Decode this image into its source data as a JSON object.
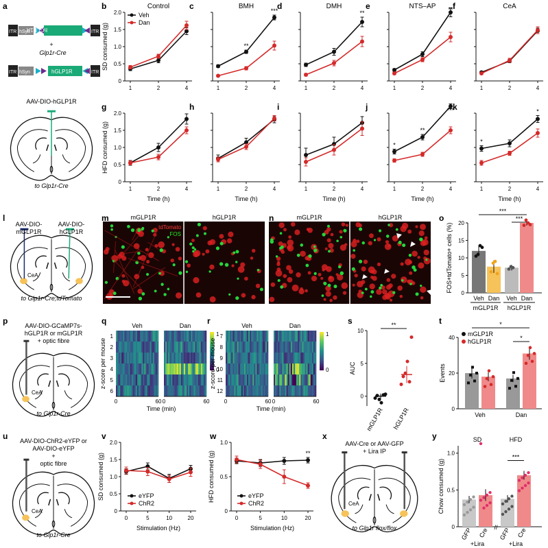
{
  "colors": {
    "veh": "#111111",
    "dan": "#d42a2a",
    "gfp_bar": "#c8c8c8",
    "dan_bar": "#f08a8a",
    "m_dan_bar": "#f6c35a",
    "teal": "#1aaa77",
    "navy": "#1a2a6a"
  },
  "panel_letters": [
    "a",
    "b",
    "c",
    "d",
    "e",
    "f",
    "g",
    "h",
    "i",
    "j",
    "k",
    "l",
    "m",
    "n",
    "o",
    "p",
    "q",
    "r",
    "s",
    "t",
    "u",
    "v",
    "w",
    "x",
    "y"
  ],
  "panel_a": {
    "itr": "ITR",
    "hsyn": "hSyn",
    "construct_inv": "hGLP1R",
    "plus": "+",
    "cre": "Glp1r-Cre",
    "construct": "hGLP1R",
    "virus": "AAV-DIO-hGLP1R",
    "to": "to Glp1r-Cre"
  },
  "panel_l": {
    "left": [
      "AAV-DIO-",
      "mGLP1R"
    ],
    "right": [
      "AAV-DIO-",
      "hGLP1R"
    ],
    "region": "CeA",
    "to": "to Glp1r-Cre;tdTomato"
  },
  "panel_m": {
    "left": "mGLP1R",
    "right": "hGLP1R",
    "red": "tdTomato",
    "green": "FOS"
  },
  "panel_n": {
    "left": "mGLP1R",
    "right": "hGLP1R"
  },
  "panel_p": {
    "lines": [
      "AAV-DIO-GCaMP7s-",
      "hGLP1R or mGLP1R",
      "+ optic fibre"
    ],
    "region": "CeA",
    "to": "to Glp1r-Cre"
  },
  "panel_u": {
    "lines": [
      "AAV-DIO-ChR2-eYFP or",
      "AAV-DIO-eYFP",
      "+",
      "optic fibre"
    ],
    "region": "CeA",
    "to": "to Glp1r-Cre"
  },
  "panel_x": {
    "lines": [
      "AAV-Cre or AAV-GFP",
      "+ Lira IP"
    ],
    "region": "CeA",
    "to": "to Glp1r flox/flox"
  },
  "chart_data": [
    {
      "id": "b",
      "type": "line",
      "title": "Control",
      "ylabel": "SD consumed (g)",
      "x": [
        "1",
        "2",
        "4"
      ],
      "ylim": [
        0,
        2
      ],
      "yticks": [
        "0",
        "0.5",
        "1.0",
        "1.5",
        "2.0"
      ],
      "legend": [
        "Veh",
        "Dan"
      ],
      "series": [
        {
          "name": "Veh",
          "values": [
            0.35,
            0.6,
            1.45
          ],
          "err": [
            0.05,
            0.07,
            0.1
          ]
        },
        {
          "name": "Dan",
          "values": [
            0.4,
            0.72,
            1.62
          ],
          "err": [
            0.05,
            0.06,
            0.12
          ]
        }
      ],
      "stars": [
        "",
        "",
        ""
      ]
    },
    {
      "id": "c",
      "type": "line",
      "title": "BMH",
      "x": [
        "1",
        "2",
        "4"
      ],
      "ylim": [
        0,
        2
      ],
      "yticks": [],
      "series": [
        {
          "name": "Veh",
          "values": [
            0.43,
            0.85,
            1.85
          ],
          "err": [
            0.04,
            0.05,
            0.07
          ]
        },
        {
          "name": "Dan",
          "values": [
            0.15,
            0.37,
            1.03
          ],
          "err": [
            0.03,
            0.05,
            0.13
          ]
        }
      ],
      "stars": [
        "",
        "**",
        "***"
      ]
    },
    {
      "id": "d",
      "type": "line",
      "title": "DMH",
      "x": [
        "1",
        "2",
        "4"
      ],
      "ylim": [
        0,
        2
      ],
      "yticks": [],
      "series": [
        {
          "name": "Veh",
          "values": [
            0.47,
            0.85,
            1.72
          ],
          "err": [
            0.05,
            0.1,
            0.14
          ]
        },
        {
          "name": "Dan",
          "values": [
            0.18,
            0.52,
            1.15
          ],
          "err": [
            0.04,
            0.08,
            0.15
          ]
        }
      ],
      "stars": [
        "",
        "",
        "**"
      ]
    },
    {
      "id": "e",
      "type": "line",
      "title": "NTS–AP",
      "x": [
        "1",
        "2",
        "4"
      ],
      "ylim": [
        0,
        2
      ],
      "yticks": [],
      "series": [
        {
          "name": "Veh",
          "values": [
            0.32,
            0.78,
            2.0
          ],
          "err": [
            0.04,
            0.07,
            0.13
          ]
        },
        {
          "name": "Dan",
          "values": [
            0.22,
            0.62,
            1.28
          ],
          "err": [
            0.04,
            0.06,
            0.14
          ]
        }
      ],
      "stars": [
        "",
        "",
        "**"
      ]
    },
    {
      "id": "f",
      "type": "line",
      "title": "CeA",
      "x": [
        "1",
        "2",
        "4"
      ],
      "ylim": [
        0,
        2
      ],
      "yticks": [],
      "series": [
        {
          "name": "Veh",
          "values": [
            0.25,
            0.58,
            1.46
          ],
          "err": [
            0.03,
            0.05,
            0.08
          ]
        },
        {
          "name": "Dan",
          "values": [
            0.22,
            0.6,
            1.48
          ],
          "err": [
            0.03,
            0.06,
            0.1
          ]
        }
      ],
      "stars": [
        "",
        "",
        ""
      ]
    },
    {
      "id": "g",
      "type": "line",
      "ylabel": "HFD consumed (g)",
      "xlabel": "Time (h)",
      "x": [
        "1",
        "2",
        "4"
      ],
      "ylim": [
        0,
        2
      ],
      "yticks": [
        "0",
        "0.5",
        "1.0",
        "1.5",
        "2.0"
      ],
      "series": [
        {
          "name": "Veh",
          "values": [
            0.55,
            1.0,
            1.83
          ],
          "err": [
            0.07,
            0.12,
            0.15
          ]
        },
        {
          "name": "Dan",
          "values": [
            0.55,
            0.72,
            1.5
          ],
          "err": [
            0.06,
            0.08,
            0.1
          ]
        }
      ],
      "stars": [
        "",
        "",
        ""
      ]
    },
    {
      "id": "h",
      "type": "line",
      "xlabel": "Time (h)",
      "x": [
        "1",
        "2",
        "4"
      ],
      "ylim": [
        0,
        2
      ],
      "yticks": [],
      "series": [
        {
          "name": "Veh",
          "values": [
            0.68,
            1.15,
            1.82
          ],
          "err": [
            0.1,
            0.12,
            0.1
          ]
        },
        {
          "name": "Dan",
          "values": [
            0.65,
            1.02,
            1.85
          ],
          "err": [
            0.07,
            0.08,
            0.08
          ]
        }
      ],
      "stars": [
        "",
        "",
        ""
      ]
    },
    {
      "id": "i",
      "type": "line",
      "xlabel": "Time (h)",
      "x": [
        "1",
        "2",
        "4"
      ],
      "ylim": [
        0,
        2
      ],
      "yticks": [],
      "series": [
        {
          "name": "Veh",
          "values": [
            0.78,
            1.1,
            1.72
          ],
          "err": [
            0.2,
            0.2,
            0.18
          ]
        },
        {
          "name": "Dan",
          "values": [
            0.58,
            0.93,
            1.55
          ],
          "err": [
            0.12,
            0.15,
            0.2
          ]
        }
      ],
      "stars": [
        "",
        "",
        ""
      ]
    },
    {
      "id": "j",
      "type": "line",
      "xlabel": "Time (h)",
      "x": [
        "1",
        "2",
        "4"
      ],
      "ylim": [
        0,
        2
      ],
      "yticks": [],
      "series": [
        {
          "name": "Veh",
          "values": [
            0.88,
            1.3,
            2.2
          ],
          "err": [
            0.07,
            0.08,
            0.07
          ]
        },
        {
          "name": "Dan",
          "values": [
            0.62,
            0.8,
            1.5
          ],
          "err": [
            0.05,
            0.06,
            0.1
          ]
        }
      ],
      "stars": [
        "*",
        "**",
        "***"
      ]
    },
    {
      "id": "k",
      "type": "line",
      "xlabel": "Time (h)",
      "x": [
        "1",
        "2",
        "4"
      ],
      "ylim": [
        0,
        2
      ],
      "yticks": [],
      "series": [
        {
          "name": "Veh",
          "values": [
            0.97,
            1.12,
            1.83
          ],
          "err": [
            0.08,
            0.1,
            0.1
          ]
        },
        {
          "name": "Dan",
          "values": [
            0.55,
            0.83,
            1.42
          ],
          "err": [
            0.07,
            0.06,
            0.12
          ]
        }
      ],
      "stars": [
        "*",
        "",
        "*"
      ]
    },
    {
      "id": "o",
      "type": "bar",
      "ylabel": "FOS+tdTomato+ cells (%)",
      "ylim": [
        0,
        20
      ],
      "yticks": [
        "0",
        "5",
        "10",
        "15",
        "20"
      ],
      "categories": [
        "Veh",
        "Dan",
        "Veh",
        "Dan"
      ],
      "groups": [
        "mGLP1R",
        "hGLP1R"
      ],
      "values": [
        12.0,
        7.5,
        7.2,
        20.0
      ],
      "err": [
        1.5,
        1.8,
        0.8,
        0.7
      ],
      "sig": [
        "***",
        "***"
      ]
    },
    {
      "id": "q",
      "type": "heatmap",
      "rows": [
        "1",
        "2",
        "3",
        "4",
        "5",
        "6"
      ],
      "ylabel": "z-score per mouse",
      "xlabel": "Time (min)",
      "panels": [
        "Veh",
        "Dan"
      ],
      "xticks": [
        "0",
        "60",
        "0",
        "60"
      ],
      "colorbar": [
        "1",
        "0"
      ]
    },
    {
      "id": "r",
      "type": "heatmap",
      "rows": [
        "7",
        "8",
        "9",
        "10",
        "11",
        "12"
      ],
      "ylabel": "z-score per mouse",
      "xlabel": "Time (min)",
      "panels": [
        "Veh",
        "Dan"
      ],
      "xticks": [
        "0",
        "60",
        "0",
        "60"
      ],
      "colorbar": [
        "1",
        "0"
      ]
    },
    {
      "id": "s",
      "type": "scatter",
      "ylabel": "AUC",
      "ylim": [
        0,
        10
      ],
      "yticks": [
        "0",
        "5",
        "10"
      ],
      "categories": [
        "mGLP1R",
        "hGLP1R"
      ],
      "means": [
        0.0,
        3.3
      ],
      "err": [
        0.4,
        1.3
      ],
      "points": [
        [
          -0.3,
          0.1,
          -0.5,
          -1.0,
          0.2,
          0.3
        ],
        [
          1.8,
          3.0,
          3.5,
          5.3,
          2.2,
          9.0
        ]
      ],
      "sig": "**"
    },
    {
      "id": "t",
      "type": "bar",
      "ylabel": "Events",
      "ylim": [
        0,
        40
      ],
      "yticks": [
        "0",
        "20",
        "40"
      ],
      "categories": [
        "Veh",
        "Dan"
      ],
      "legend": [
        "mGLP1R",
        "hGLP1R"
      ],
      "values": [
        [
          20,
          18
        ],
        [
          17,
          31
        ]
      ],
      "err": [
        [
          3,
          2.5
        ],
        [
          2,
          3.5
        ]
      ],
      "sig": [
        "*",
        "*"
      ]
    },
    {
      "id": "v",
      "type": "line",
      "ylabel": "SD consumed (g)",
      "xlabel": "Stimulation (Hz)",
      "x": [
        "0",
        "5",
        "10",
        "20"
      ],
      "ylim": [
        0,
        2
      ],
      "yticks": [
        "0",
        "0.5",
        "1.0",
        "1.5",
        "2.0"
      ],
      "legend": [
        "eYFP",
        "ChR2"
      ],
      "series": [
        {
          "name": "eYFP",
          "values": [
            1.15,
            1.3,
            0.95,
            1.23
          ],
          "err": [
            0.08,
            0.1,
            0.12,
            0.1
          ]
        },
        {
          "name": "ChR2",
          "values": [
            1.18,
            1.15,
            0.93,
            1.13
          ],
          "err": [
            0.1,
            0.12,
            0.1,
            0.12
          ]
        }
      ],
      "stars": [
        "",
        "",
        "",
        ""
      ]
    },
    {
      "id": "w",
      "type": "line",
      "ylabel": "HFD consumed (g)",
      "xlabel": "Stimulation (Hz)",
      "x": [
        "0",
        "5",
        "10",
        "20"
      ],
      "ylim": [
        0,
        1
      ],
      "yticks": [
        "0",
        "0.5",
        "1.0"
      ],
      "legend": [
        "eYFP",
        "ChR2"
      ],
      "series": [
        {
          "name": "eYFP",
          "values": [
            0.73,
            0.7,
            0.73,
            0.74
          ],
          "err": [
            0.04,
            0.05,
            0.05,
            0.04
          ]
        },
        {
          "name": "ChR2",
          "values": [
            0.75,
            0.68,
            0.5,
            0.37
          ],
          "err": [
            0.05,
            0.06,
            0.1,
            0.04
          ]
        }
      ],
      "stars": [
        "",
        "",
        "",
        "**"
      ]
    },
    {
      "id": "y",
      "type": "bar",
      "ylabel": "Chow consumed (g)",
      "ylim": [
        0,
        1
      ],
      "yticks": [
        "0",
        "0.5",
        "1.0"
      ],
      "headers": [
        "SD",
        "HFD"
      ],
      "categories": [
        "GFP",
        "Cre",
        "GFP",
        "Cre"
      ],
      "footer": [
        "+Lira",
        "+Lira"
      ],
      "values": [
        0.37,
        0.43,
        0.38,
        0.7
      ],
      "err": [
        0.05,
        0.08,
        0.05,
        0.06
      ],
      "sig": "***"
    }
  ]
}
